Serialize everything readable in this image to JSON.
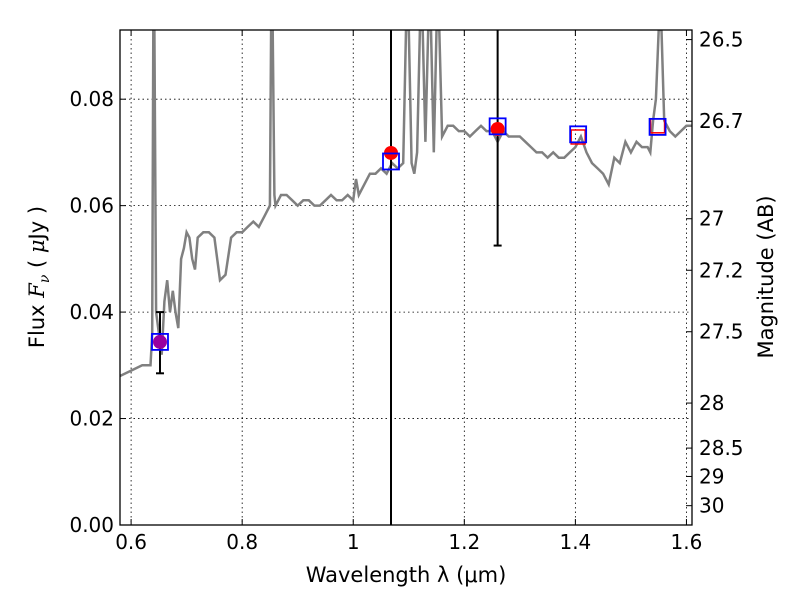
{
  "chart_data": {
    "type": "line",
    "xlabel": "Wavelength  λ (μm)",
    "ylabel": "Flux  F_ν  ( μJy )",
    "y2label": "Magnitude (AB)",
    "xlim": [
      0.58,
      1.61
    ],
    "ylim": [
      0.0,
      0.093
    ],
    "grid": true,
    "x_ticks": [
      0.6,
      0.8,
      1.0,
      1.2,
      1.4,
      1.6
    ],
    "x_tick_labels": [
      "0.6",
      "0.8",
      "1",
      "1.2",
      "1.4",
      "1.6"
    ],
    "y_ticks": [
      0.0,
      0.02,
      0.04,
      0.06,
      0.08
    ],
    "y_tick_labels": [
      "0.00",
      "0.02",
      "0.04",
      "0.06",
      "0.08"
    ],
    "y2_ticks": [
      {
        "label": "26.5",
        "flux": 0.0912
      },
      {
        "label": "26.7",
        "flux": 0.07586
      },
      {
        "label": "27",
        "flux": 0.05754
      },
      {
        "label": "27.2",
        "flux": 0.04786
      },
      {
        "label": "27.5",
        "flux": 0.03631
      },
      {
        "label": "28",
        "flux": 0.02291
      },
      {
        "label": "28.5",
        "flux": 0.01445
      },
      {
        "label": "29",
        "flux": 0.00912
      },
      {
        "label": "30",
        "flux": 0.00363
      }
    ],
    "spectrum": {
      "color": "#808080",
      "x": [
        0.58,
        0.6,
        0.62,
        0.635,
        0.638,
        0.64,
        0.642,
        0.645,
        0.65,
        0.655,
        0.66,
        0.665,
        0.67,
        0.675,
        0.68,
        0.685,
        0.69,
        0.695,
        0.7,
        0.705,
        0.71,
        0.715,
        0.72,
        0.73,
        0.74,
        0.75,
        0.76,
        0.77,
        0.78,
        0.79,
        0.8,
        0.81,
        0.82,
        0.83,
        0.84,
        0.85,
        0.852,
        0.855,
        0.858,
        0.86,
        0.865,
        0.87,
        0.88,
        0.89,
        0.9,
        0.91,
        0.92,
        0.93,
        0.94,
        0.95,
        0.96,
        0.97,
        0.98,
        0.99,
        1.0,
        1.005,
        1.01,
        1.02,
        1.03,
        1.04,
        1.05,
        1.06,
        1.07,
        1.08,
        1.09,
        1.095,
        1.1,
        1.105,
        1.11,
        1.115,
        1.12,
        1.125,
        1.13,
        1.135,
        1.14,
        1.145,
        1.15,
        1.155,
        1.16,
        1.17,
        1.18,
        1.19,
        1.2,
        1.21,
        1.22,
        1.23,
        1.24,
        1.25,
        1.26,
        1.27,
        1.28,
        1.29,
        1.3,
        1.31,
        1.32,
        1.33,
        1.34,
        1.35,
        1.36,
        1.37,
        1.38,
        1.39,
        1.4,
        1.41,
        1.42,
        1.43,
        1.44,
        1.45,
        1.46,
        1.47,
        1.48,
        1.49,
        1.5,
        1.51,
        1.52,
        1.53,
        1.535,
        1.54,
        1.545,
        1.55,
        1.555,
        1.56,
        1.57,
        1.58,
        1.59,
        1.6,
        1.61
      ],
      "y": [
        0.028,
        0.029,
        0.03,
        0.03,
        0.036,
        0.093,
        0.093,
        0.04,
        0.036,
        0.032,
        0.042,
        0.046,
        0.04,
        0.044,
        0.04,
        0.037,
        0.05,
        0.052,
        0.055,
        0.054,
        0.05,
        0.048,
        0.054,
        0.055,
        0.055,
        0.054,
        0.046,
        0.047,
        0.054,
        0.055,
        0.055,
        0.056,
        0.057,
        0.056,
        0.058,
        0.06,
        0.093,
        0.093,
        0.062,
        0.06,
        0.061,
        0.062,
        0.062,
        0.061,
        0.06,
        0.061,
        0.061,
        0.06,
        0.06,
        0.061,
        0.062,
        0.061,
        0.061,
        0.062,
        0.061,
        0.065,
        0.062,
        0.064,
        0.066,
        0.066,
        0.067,
        0.066,
        0.068,
        0.067,
        0.068,
        0.093,
        0.093,
        0.068,
        0.066,
        0.07,
        0.093,
        0.093,
        0.072,
        0.093,
        0.093,
        0.07,
        0.093,
        0.093,
        0.073,
        0.075,
        0.075,
        0.074,
        0.074,
        0.073,
        0.074,
        0.075,
        0.074,
        0.074,
        0.072,
        0.074,
        0.073,
        0.073,
        0.073,
        0.072,
        0.071,
        0.07,
        0.07,
        0.069,
        0.07,
        0.069,
        0.069,
        0.07,
        0.071,
        0.073,
        0.07,
        0.068,
        0.067,
        0.066,
        0.064,
        0.069,
        0.068,
        0.072,
        0.07,
        0.072,
        0.071,
        0.071,
        0.07,
        0.076,
        0.08,
        0.093,
        0.093,
        0.076,
        0.074,
        0.073,
        0.074,
        0.075,
        0.075
      ]
    },
    "error_bars": [
      {
        "x": 0.652,
        "y_low": 0.0285,
        "y_high": 0.04
      },
      {
        "x": 1.068,
        "y_low": 0.0,
        "y_high": 0.093
      },
      {
        "x": 1.26,
        "y_low": 0.0525,
        "y_high": 0.093
      }
    ],
    "filled_points": [
      {
        "x": 0.652,
        "y": 0.0344,
        "color": "#9900a0"
      },
      {
        "x": 1.068,
        "y": 0.0699,
        "color": "#ff0000"
      },
      {
        "x": 1.26,
        "y": 0.0744,
        "color": "#ff0000"
      }
    ],
    "blue_squares": [
      {
        "x": 0.652,
        "y": 0.0344,
        "color": "#0000ff"
      },
      {
        "x": 1.068,
        "y": 0.0683,
        "color": "#0000ff"
      },
      {
        "x": 1.26,
        "y": 0.0749,
        "color": "#0000ff"
      },
      {
        "x": 1.405,
        "y": 0.0734,
        "color": "#0000ff"
      },
      {
        "x": 1.548,
        "y": 0.0748,
        "color": "#0000ff"
      }
    ],
    "red_open_squares": [
      {
        "x": 1.405,
        "y": 0.0729,
        "color": "#ff0000"
      },
      {
        "x": 1.548,
        "y": 0.075,
        "color": "#ff0000"
      }
    ]
  }
}
